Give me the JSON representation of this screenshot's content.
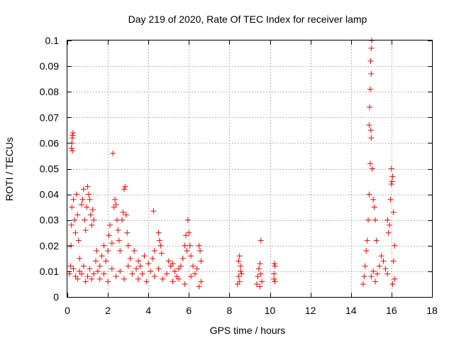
{
  "chart_data": {
    "type": "scatter",
    "title": "Day 219 of 2020, Rate Of TEC Index for receiver lamp",
    "xlabel": "GPS time / hours",
    "ylabel": "ROTI / TECUs",
    "xlim": [
      0,
      18
    ],
    "ylim": [
      0,
      0.1
    ],
    "grid": true,
    "marker": "plus",
    "color": "#ff0000",
    "xticks": [
      0,
      2,
      4,
      6,
      8,
      10,
      12,
      14,
      16,
      18
    ],
    "xtick_labels": [
      "0",
      "2",
      "4",
      "6",
      "8",
      "10",
      "12",
      "14",
      "16",
      "18"
    ],
    "yticks": [
      0,
      0.01,
      0.02,
      0.03,
      0.04,
      0.05,
      0.06,
      0.07,
      0.08,
      0.09,
      0.1
    ],
    "ytick_labels": [
      "0",
      "0.01",
      "0.02",
      "0.03",
      "0.04",
      "0.05",
      "0.06",
      "0.07",
      "0.08",
      "0.09",
      "0.1"
    ],
    "series": [
      {
        "name": "ROTI",
        "points": [
          [
            0.1,
            0.009
          ],
          [
            0.15,
            0.012
          ],
          [
            0.18,
            0.02
          ],
          [
            0.2,
            0.028
          ],
          [
            0.22,
            0.035
          ],
          [
            0.2,
            0.058
          ],
          [
            0.22,
            0.06
          ],
          [
            0.25,
            0.063
          ],
          [
            0.25,
            0.057
          ],
          [
            0.28,
            0.064
          ],
          [
            0.24,
            0.062
          ],
          [
            0.3,
            0.038
          ],
          [
            0.35,
            0.03
          ],
          [
            0.4,
            0.025
          ],
          [
            0.45,
            0.04
          ],
          [
            0.5,
            0.032
          ],
          [
            0.55,
            0.022
          ],
          [
            0.6,
            0.015
          ],
          [
            0.3,
            0.011
          ],
          [
            0.4,
            0.008
          ],
          [
            0.5,
            0.007
          ],
          [
            0.6,
            0.01
          ],
          [
            0.7,
            0.036
          ],
          [
            0.75,
            0.038
          ],
          [
            0.8,
            0.042
          ],
          [
            0.85,
            0.03
          ],
          [
            0.9,
            0.026
          ],
          [
            0.95,
            0.035
          ],
          [
            1.0,
            0.043
          ],
          [
            1.05,
            0.04
          ],
          [
            1.1,
            0.038
          ],
          [
            1.15,
            0.032
          ],
          [
            1.2,
            0.028
          ],
          [
            1.25,
            0.034
          ],
          [
            1.3,
            0.03
          ],
          [
            0.7,
            0.009
          ],
          [
            0.8,
            0.012
          ],
          [
            0.9,
            0.006
          ],
          [
            1.0,
            0.008
          ],
          [
            1.1,
            0.011
          ],
          [
            1.2,
            0.007
          ],
          [
            1.3,
            0.009
          ],
          [
            1.4,
            0.014
          ],
          [
            1.45,
            0.018
          ],
          [
            1.5,
            0.01
          ],
          [
            1.6,
            0.012
          ],
          [
            1.7,
            0.016
          ],
          [
            1.8,
            0.02
          ],
          [
            1.9,
            0.014
          ],
          [
            2.0,
            0.018
          ],
          [
            2.05,
            0.024
          ],
          [
            2.1,
            0.028
          ],
          [
            2.2,
            0.021
          ],
          [
            2.25,
            0.056
          ],
          [
            2.3,
            0.035
          ],
          [
            2.35,
            0.038
          ],
          [
            2.4,
            0.036
          ],
          [
            2.45,
            0.03
          ],
          [
            2.5,
            0.026
          ],
          [
            2.55,
            0.022
          ],
          [
            2.6,
            0.018
          ],
          [
            2.7,
            0.03
          ],
          [
            2.75,
            0.033
          ],
          [
            2.8,
            0.042
          ],
          [
            2.85,
            0.043
          ],
          [
            2.9,
            0.032
          ],
          [
            2.95,
            0.025
          ],
          [
            3.0,
            0.02
          ],
          [
            3.1,
            0.015
          ],
          [
            1.6,
            0.007
          ],
          [
            1.8,
            0.009
          ],
          [
            2.0,
            0.006
          ],
          [
            2.2,
            0.011
          ],
          [
            2.4,
            0.008
          ],
          [
            2.6,
            0.01
          ],
          [
            2.8,
            0.007
          ],
          [
            3.0,
            0.012
          ],
          [
            3.2,
            0.009
          ],
          [
            3.4,
            0.011
          ],
          [
            3.3,
            0.018
          ],
          [
            3.5,
            0.014
          ],
          [
            3.6,
            0.012
          ],
          [
            3.8,
            0.016
          ],
          [
            4.0,
            0.013
          ],
          [
            4.2,
            0.015
          ],
          [
            4.3,
            0.018
          ],
          [
            4.25,
            0.0335
          ],
          [
            4.5,
            0.025
          ],
          [
            4.55,
            0.022
          ],
          [
            4.6,
            0.02
          ],
          [
            4.65,
            0.017
          ],
          [
            3.5,
            0.007
          ],
          [
            3.7,
            0.009
          ],
          [
            3.9,
            0.006
          ],
          [
            4.1,
            0.01
          ],
          [
            4.3,
            0.008
          ],
          [
            4.5,
            0.011
          ],
          [
            4.7,
            0.007
          ],
          [
            4.9,
            0.009
          ],
          [
            5.0,
            0.014
          ],
          [
            5.1,
            0.012
          ],
          [
            5.2,
            0.013
          ],
          [
            5.3,
            0.01
          ],
          [
            5.4,
            0.008
          ],
          [
            5.5,
            0.011
          ],
          [
            5.6,
            0.012
          ],
          [
            5.7,
            0.015
          ],
          [
            5.8,
            0.02
          ],
          [
            5.85,
            0.024
          ],
          [
            5.9,
            0.018
          ],
          [
            5.95,
            0.03
          ],
          [
            6.0,
            0.025
          ],
          [
            6.05,
            0.02
          ],
          [
            6.1,
            0.016
          ],
          [
            6.2,
            0.012
          ],
          [
            6.3,
            0.009
          ],
          [
            6.4,
            0.011
          ],
          [
            6.5,
            0.02
          ],
          [
            6.55,
            0.018
          ],
          [
            6.6,
            0.014
          ],
          [
            6.6,
            0.006
          ],
          [
            6.5,
            0.004
          ],
          [
            5.2,
            0.006
          ],
          [
            5.5,
            0.007
          ],
          [
            5.8,
            0.005
          ],
          [
            6.1,
            0.008
          ],
          [
            8.4,
            0.005
          ],
          [
            8.45,
            0.008
          ],
          [
            8.5,
            0.016
          ],
          [
            8.55,
            0.012
          ],
          [
            8.6,
            0.009
          ],
          [
            8.5,
            0.006
          ],
          [
            8.55,
            0.01
          ],
          [
            8.45,
            0.014
          ],
          [
            9.35,
            0.005
          ],
          [
            9.4,
            0.008
          ],
          [
            9.45,
            0.011
          ],
          [
            9.5,
            0.013
          ],
          [
            9.55,
            0.009
          ],
          [
            9.6,
            0.006
          ],
          [
            9.55,
            0.022
          ],
          [
            9.5,
            0.004
          ],
          [
            10.2,
            0.007
          ],
          [
            10.25,
            0.006
          ],
          [
            10.25,
            0.012
          ],
          [
            10.2,
            0.009
          ],
          [
            10.22,
            0.013
          ],
          [
            14.6,
            0.005
          ],
          [
            14.65,
            0.008
          ],
          [
            14.7,
            0.012
          ],
          [
            14.75,
            0.018
          ],
          [
            14.8,
            0.022
          ],
          [
            14.85,
            0.03
          ],
          [
            14.9,
            0.04
          ],
          [
            14.95,
            0.052
          ],
          [
            15.0,
            0.062
          ],
          [
            14.9,
            0.067
          ],
          [
            14.92,
            0.074
          ],
          [
            14.95,
            0.081
          ],
          [
            15.0,
            0.087
          ],
          [
            14.97,
            0.092
          ],
          [
            15.0,
            0.097
          ],
          [
            15.02,
            0.1
          ],
          [
            14.98,
            0.065
          ],
          [
            15.05,
            0.05
          ],
          [
            15.1,
            0.038
          ],
          [
            15.15,
            0.035
          ],
          [
            15.2,
            0.03
          ],
          [
            15.25,
            0.022
          ],
          [
            15.0,
            0.008
          ],
          [
            15.1,
            0.01
          ],
          [
            15.2,
            0.006
          ],
          [
            15.3,
            0.009
          ],
          [
            15.4,
            0.012
          ],
          [
            15.5,
            0.016
          ],
          [
            15.6,
            0.014
          ],
          [
            15.7,
            0.011
          ],
          [
            15.8,
            0.009
          ],
          [
            15.8,
            0.03
          ],
          [
            15.85,
            0.025
          ],
          [
            15.9,
            0.028
          ],
          [
            15.95,
            0.038
          ],
          [
            16.0,
            0.044
          ],
          [
            16.05,
            0.047
          ],
          [
            16.0,
            0.05
          ],
          [
            16.02,
            0.045
          ],
          [
            16.1,
            0.033
          ],
          [
            16.15,
            0.02
          ],
          [
            16.1,
            0.014
          ],
          [
            16.15,
            0.007
          ],
          [
            16.05,
            0.005
          ]
        ]
      }
    ]
  }
}
